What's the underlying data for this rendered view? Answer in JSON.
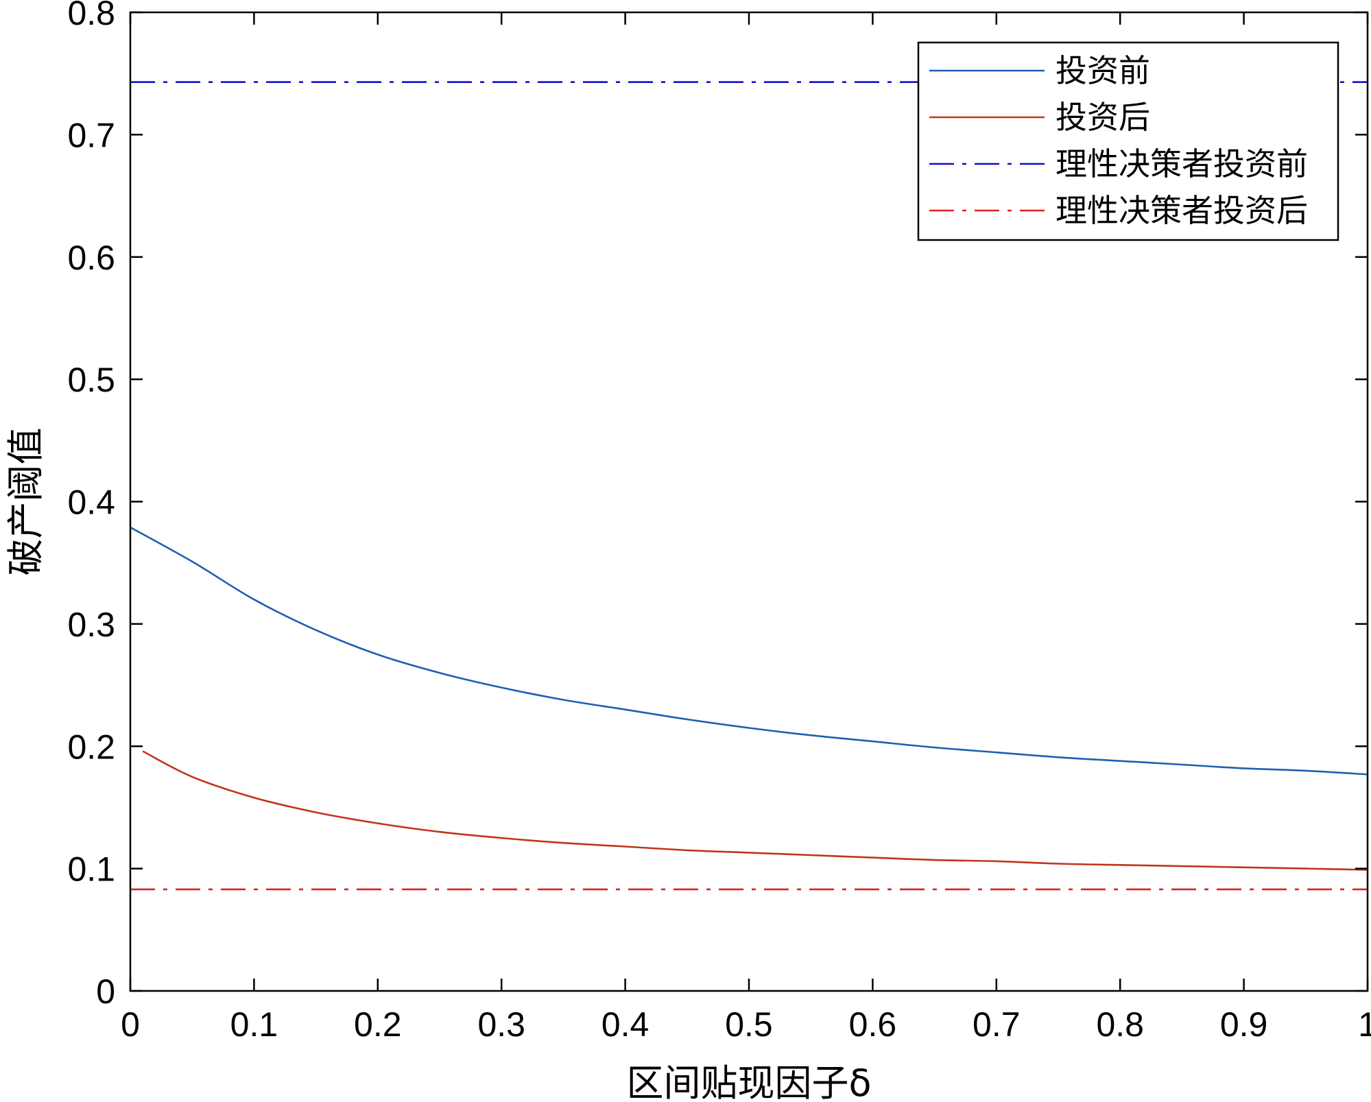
{
  "chart_data": {
    "type": "line",
    "xlabel": "区间贴现因子δ",
    "ylabel": "破产阈值",
    "xlim": [
      0,
      1
    ],
    "ylim": [
      0,
      0.8
    ],
    "xticks": [
      0,
      0.1,
      0.2,
      0.3,
      0.4,
      0.5,
      0.6,
      0.7,
      0.8,
      0.9,
      1
    ],
    "xtick_labels": [
      "0",
      "0.1",
      "0.2",
      "0.3",
      "0.4",
      "0.5",
      "0.6",
      "0.7",
      "0.8",
      "0.9",
      "1"
    ],
    "yticks": [
      0,
      0.1,
      0.2,
      0.3,
      0.4,
      0.5,
      0.6,
      0.7,
      0.8
    ],
    "ytick_labels": [
      "0",
      "0.1",
      "0.2",
      "0.3",
      "0.4",
      "0.5",
      "0.6",
      "0.7",
      "0.8"
    ],
    "grid": false,
    "legend_position": "top-right",
    "series": [
      {
        "name": "投资前",
        "color": "#1f5fb0",
        "style": "solid",
        "x": [
          0.0,
          0.05,
          0.1,
          0.15,
          0.2,
          0.25,
          0.3,
          0.35,
          0.4,
          0.45,
          0.5,
          0.55,
          0.6,
          0.65,
          0.7,
          0.75,
          0.8,
          0.85,
          0.9,
          0.95,
          1.0
        ],
        "y": [
          0.379,
          0.351,
          0.32,
          0.295,
          0.275,
          0.26,
          0.248,
          0.238,
          0.23,
          0.222,
          0.215,
          0.209,
          0.204,
          0.199,
          0.195,
          0.191,
          0.188,
          0.185,
          0.182,
          0.18,
          0.177
        ]
      },
      {
        "name": "投资后",
        "color": "#c0341d",
        "style": "solid",
        "x": [
          0.01,
          0.05,
          0.1,
          0.15,
          0.2,
          0.25,
          0.3,
          0.35,
          0.4,
          0.45,
          0.5,
          0.55,
          0.6,
          0.65,
          0.7,
          0.75,
          0.8,
          0.85,
          0.9,
          0.95,
          1.0
        ],
        "y": [
          0.196,
          0.175,
          0.158,
          0.146,
          0.137,
          0.13,
          0.125,
          0.121,
          0.118,
          0.115,
          0.113,
          0.111,
          0.109,
          0.107,
          0.106,
          0.104,
          0.103,
          0.102,
          0.101,
          0.1,
          0.099
        ]
      },
      {
        "name": "理性决策者投资前",
        "color": "#1010c8",
        "style": "dashdot",
        "x": [
          0,
          1
        ],
        "y": [
          0.743,
          0.743
        ]
      },
      {
        "name": "理性决策者投资后",
        "color": "#e02020",
        "style": "dashdot",
        "x": [
          0,
          1
        ],
        "y": [
          0.083,
          0.083
        ]
      }
    ]
  }
}
